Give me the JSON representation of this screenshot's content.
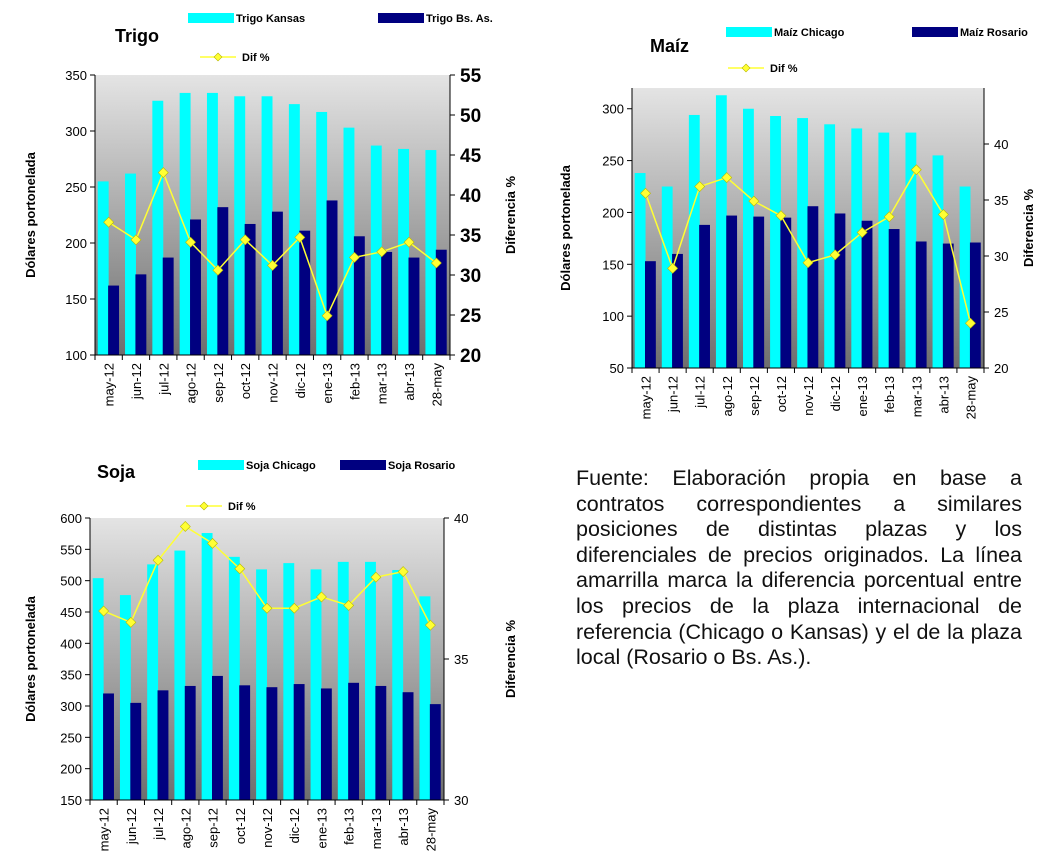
{
  "chart_data": [
    {
      "type": "bar",
      "title": "Trigo",
      "categories": [
        "may-12",
        "jun-12",
        "jul-12",
        "ago-12",
        "sep-12",
        "oct-12",
        "nov-12",
        "dic-12",
        "ene-13",
        "feb-13",
        "mar-13",
        "abr-13",
        "28-may"
      ],
      "series": [
        {
          "name": "Trigo Kansas",
          "axis": "left",
          "color": "#00FFFF",
          "values": [
            255,
            262,
            327,
            334,
            334,
            331,
            331,
            324,
            317,
            303,
            287,
            284,
            283
          ]
        },
        {
          "name": "Trigo  Bs. As.",
          "axis": "left",
          "color": "#000080",
          "values": [
            162,
            172,
            187,
            221,
            232,
            217,
            228,
            211,
            238,
            206,
            192,
            187,
            194
          ]
        },
        {
          "name": "Dif %",
          "axis": "right",
          "type": "line",
          "color": "#FFFF33",
          "values": [
            36.6,
            34.4,
            42.8,
            34.1,
            30.6,
            34.4,
            31.2,
            34.7,
            24.9,
            32.2,
            32.9,
            34.1,
            31.5
          ]
        }
      ],
      "ylabel": "Dólares portonelada",
      "y2label": "Diferencia %",
      "ylim": [
        100,
        350
      ],
      "yticks": [
        100,
        150,
        200,
        250,
        300,
        350
      ],
      "y2lim": [
        20,
        55
      ],
      "y2ticks": [
        20,
        25,
        30,
        35,
        40,
        45,
        50,
        55
      ],
      "legend": "top"
    },
    {
      "type": "bar",
      "title": "Maíz",
      "categories": [
        "may-12",
        "jun-12",
        "jul-12",
        "ago-12",
        "sep-12",
        "oct-12",
        "nov-12",
        "dic-12",
        "ene-13",
        "feb-13",
        "mar-13",
        "abr-13",
        "28-may"
      ],
      "series": [
        {
          "name": "Maíz  Chicago",
          "axis": "left",
          "color": "#00FFFF",
          "values": [
            238,
            225,
            294,
            313,
            300,
            293,
            291,
            285,
            281,
            277,
            277,
            255,
            225
          ]
        },
        {
          "name": "Maíz  Rosario",
          "axis": "left",
          "color": "#000080",
          "values": [
            153,
            160,
            188,
            197,
            196,
            195,
            206,
            199,
            192,
            184,
            172,
            170,
            171
          ]
        },
        {
          "name": "Dif %",
          "axis": "right",
          "type": "line",
          "color": "#FFFF33",
          "values": [
            35.6,
            28.9,
            36.2,
            37.0,
            34.9,
            33.6,
            29.4,
            30.1,
            32.1,
            33.5,
            37.7,
            33.7,
            24.0
          ]
        }
      ],
      "ylabel": "Dólares portonelada",
      "y2label": "Diferencia %",
      "ylim": [
        50,
        320
      ],
      "yticks": [
        50,
        100,
        150,
        200,
        250,
        300
      ],
      "y2lim": [
        20,
        45
      ],
      "y2ticks": [
        20,
        25,
        30,
        35,
        40
      ],
      "legend": "top"
    },
    {
      "type": "bar",
      "title": "Soja",
      "categories": [
        "may-12",
        "jun-12",
        "jul-12",
        "ago-12",
        "sep-12",
        "oct-12",
        "nov-12",
        "dic-12",
        "ene-13",
        "feb-13",
        "mar-13",
        "abr-13",
        "28-may"
      ],
      "series": [
        {
          "name": "Soja Chicago",
          "axis": "left",
          "color": "#00FFFF",
          "values": [
            504,
            477,
            526,
            548,
            576,
            538,
            518,
            528,
            518,
            530,
            530,
            517,
            475
          ]
        },
        {
          "name": "Soja Rosario",
          "axis": "left",
          "color": "#000080",
          "values": [
            320,
            305,
            325,
            332,
            348,
            333,
            330,
            335,
            328,
            337,
            332,
            322,
            303
          ]
        },
        {
          "name": "Dif %",
          "axis": "right",
          "type": "line",
          "color": "#FFFF33",
          "values": [
            36.7,
            36.3,
            38.5,
            39.7,
            39.1,
            38.2,
            36.8,
            36.8,
            37.2,
            36.9,
            37.9,
            38.1,
            36.2
          ]
        }
      ],
      "ylabel": "Dólares portonelada",
      "y2label": "Diferencia %",
      "ylim": [
        150,
        600
      ],
      "yticks": [
        150,
        200,
        250,
        300,
        350,
        400,
        450,
        500,
        550,
        600
      ],
      "y2lim": [
        30,
        40
      ],
      "y2ticks": [
        30,
        35,
        40
      ],
      "legend": "top"
    }
  ],
  "note": {
    "text": "Fuente: Elaboración propia en base a contratos correspondientes a similares posiciones de distintas plazas y los diferenciales de precios originados. La línea amarrilla marca la diferencia porcentual entre los precios de la plaza internacional de referencia (Chicago o Kansas) y el de la plaza local (Rosario o Bs. As.)."
  }
}
